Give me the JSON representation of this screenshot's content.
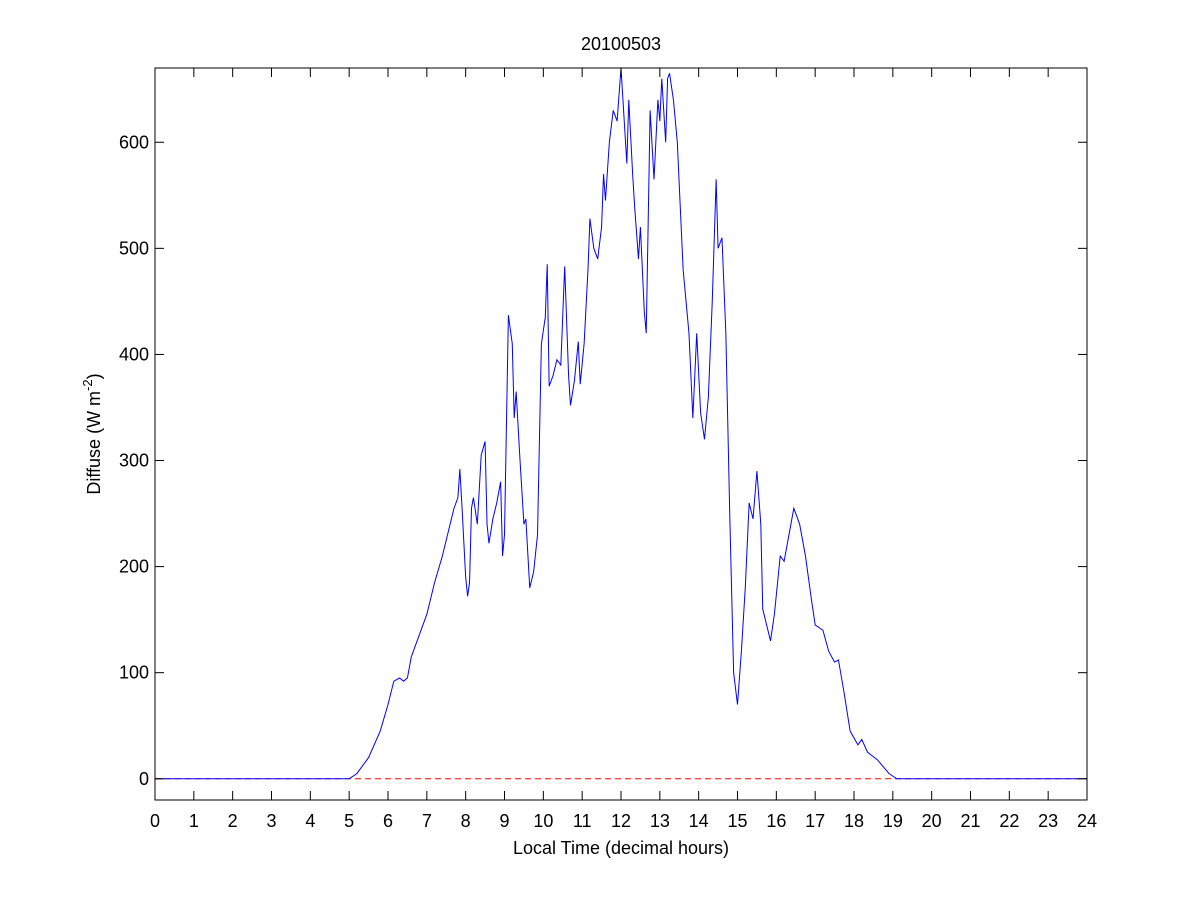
{
  "chart_data": {
    "type": "line",
    "title": "20100503",
    "x_label": "Local Time (decimal hours)",
    "y_label_parts": [
      "Diffuse (W m",
      "-2",
      ")"
    ],
    "x": [
      0,
      5,
      5.2,
      5.5,
      5.8,
      6.0,
      6.15,
      6.3,
      6.4,
      6.5,
      6.6,
      6.8,
      7.0,
      7.2,
      7.4,
      7.6,
      7.7,
      7.8,
      7.85,
      7.9,
      8.0,
      8.05,
      8.1,
      8.15,
      8.2,
      8.3,
      8.4,
      8.5,
      8.55,
      8.6,
      8.7,
      8.8,
      8.9,
      8.95,
      9.0,
      9.1,
      9.2,
      9.25,
      9.3,
      9.4,
      9.5,
      9.55,
      9.65,
      9.75,
      9.85,
      9.95,
      10.05,
      10.1,
      10.15,
      10.25,
      10.35,
      10.45,
      10.55,
      10.65,
      10.7,
      10.8,
      10.9,
      10.95,
      11.05,
      11.15,
      11.2,
      11.3,
      11.4,
      11.5,
      11.55,
      11.6,
      11.7,
      11.8,
      11.9,
      12.0,
      12.05,
      12.15,
      12.2,
      12.3,
      12.35,
      12.45,
      12.5,
      12.6,
      12.65,
      12.75,
      12.85,
      12.95,
      13.0,
      13.05,
      13.15,
      13.2,
      13.25,
      13.35,
      13.45,
      13.6,
      13.75,
      13.85,
      13.95,
      14.05,
      14.15,
      14.25,
      14.35,
      14.45,
      14.5,
      14.6,
      14.7,
      14.8,
      14.9,
      15.0,
      15.1,
      15.2,
      15.3,
      15.4,
      15.5,
      15.6,
      15.65,
      15.75,
      15.85,
      15.95,
      16.1,
      16.2,
      16.35,
      16.45,
      16.6,
      16.75,
      16.9,
      17.0,
      17.2,
      17.35,
      17.5,
      17.6,
      17.75,
      17.9,
      18.1,
      18.2,
      18.35,
      18.6,
      18.9,
      19.1,
      19.5,
      24
    ],
    "series": [
      {
        "color": "#0000ff",
        "values": [
          0,
          0,
          5,
          20,
          45,
          70,
          92,
          95,
          92,
          95,
          115,
          135,
          155,
          185,
          210,
          240,
          255,
          265,
          292,
          260,
          190,
          172,
          185,
          255,
          265,
          240,
          305,
          318,
          240,
          222,
          245,
          260,
          280,
          210,
          230,
          437,
          410,
          340,
          365,
          300,
          240,
          245,
          180,
          195,
          230,
          410,
          435,
          485,
          370,
          380,
          395,
          390,
          483,
          380,
          352,
          375,
          412,
          372,
          410,
          480,
          528,
          500,
          490,
          520,
          570,
          545,
          600,
          630,
          620,
          670,
          640,
          580,
          640,
          570,
          540,
          490,
          520,
          440,
          420,
          630,
          565,
          640,
          620,
          660,
          600,
          660,
          665,
          640,
          600,
          480,
          420,
          340,
          420,
          345,
          320,
          360,
          450,
          565,
          500,
          510,
          420,
          250,
          100,
          70,
          120,
          180,
          260,
          245,
          290,
          240,
          160,
          145,
          130,
          155,
          210,
          205,
          235,
          255,
          240,
          210,
          170,
          145,
          140,
          120,
          110,
          112,
          80,
          45,
          32,
          37,
          25,
          18,
          5,
          0,
          0,
          0
        ]
      }
    ],
    "reference_line": {
      "value": 0,
      "color": "#ff0000",
      "style": "dashed"
    },
    "xlim": [
      0,
      24
    ],
    "xticks": [
      0,
      1,
      2,
      3,
      4,
      5,
      6,
      7,
      8,
      9,
      10,
      11,
      12,
      13,
      14,
      15,
      16,
      17,
      18,
      19,
      20,
      21,
      22,
      23,
      24
    ],
    "ylim": [
      -20,
      670
    ],
    "yticks": [
      0,
      100,
      200,
      300,
      400,
      500,
      600
    ]
  }
}
